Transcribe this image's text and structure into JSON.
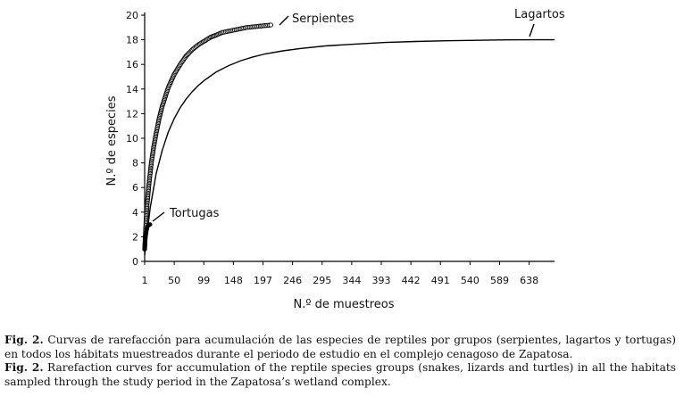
{
  "chart_data": {
    "type": "line",
    "xlabel": "N.º de muestreos",
    "ylabel": "N.º de especies",
    "xlim": [
      1,
      680
    ],
    "ylim": [
      0,
      20
    ],
    "xticks": [
      1,
      50,
      99,
      148,
      197,
      246,
      295,
      344,
      393,
      442,
      491,
      540,
      589,
      638
    ],
    "yticks": [
      0,
      2,
      4,
      6,
      8,
      10,
      12,
      14,
      16,
      18,
      20
    ],
    "legend": "none",
    "grid": false,
    "series": [
      {
        "name": "Serpientes",
        "style": "open-circle-markers",
        "x": [
          1,
          3,
          5,
          8,
          12,
          16,
          20,
          25,
          30,
          40,
          50,
          60,
          70,
          80,
          90,
          100,
          110,
          120,
          130,
          140,
          150,
          160,
          170,
          180,
          190,
          200,
          210
        ],
        "y": [
          1,
          3,
          4.6,
          6.2,
          8,
          9.3,
          10.4,
          11.6,
          12.6,
          14.1,
          15.2,
          16,
          16.7,
          17.2,
          17.6,
          17.9,
          18.2,
          18.4,
          18.6,
          18.7,
          18.8,
          18.9,
          19.0,
          19.05,
          19.1,
          19.15,
          19.2
        ]
      },
      {
        "name": "Lagartos",
        "style": "line",
        "x": [
          1,
          10,
          20,
          30,
          40,
          50,
          60,
          70,
          80,
          90,
          100,
          120,
          140,
          160,
          180,
          200,
          230,
          260,
          300,
          350,
          400,
          450,
          500,
          550,
          600,
          650,
          680
        ],
        "y": [
          0.5,
          4.3,
          7.1,
          9.0,
          10.5,
          11.6,
          12.5,
          13.2,
          13.8,
          14.3,
          14.7,
          15.4,
          15.9,
          16.3,
          16.6,
          16.85,
          17.1,
          17.3,
          17.5,
          17.65,
          17.78,
          17.86,
          17.92,
          17.96,
          17.99,
          18.0,
          18.0
        ]
      },
      {
        "name": "Tortugas",
        "style": "filled-circle-markers",
        "x": [
          1,
          2,
          3,
          4,
          5,
          6,
          7,
          8,
          9,
          10
        ],
        "y": [
          1,
          1.8,
          2.2,
          2.5,
          2.7,
          2.85,
          2.92,
          2.96,
          2.98,
          3.0
        ]
      }
    ]
  },
  "caption": {
    "es_lead": "Fig. 2.",
    "es_text": " Curvas de rarefacción para acumulación de las especies de reptiles por grupos (serpientes, lagartos y tortugas) en todos los hábitats muestreados durante el periodo de estudio en el complejo cenagoso de Zapatosa.",
    "en_lead": "Fig. 2.",
    "en_text": " Rarefaction curves for accumulation of the reptile species groups (snakes, lizards and turtles) in all the habitats sampled through the study period in the Zapatosa’s wetland complex."
  }
}
